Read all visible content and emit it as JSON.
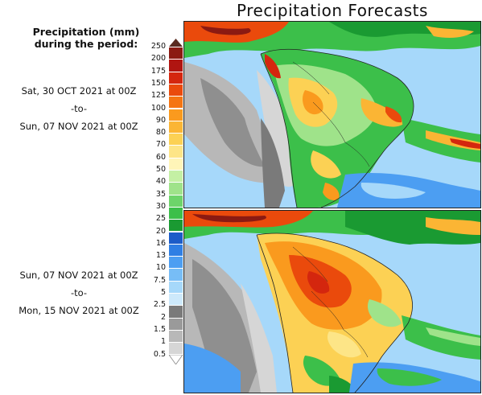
{
  "title": "Precipitation Forecasts",
  "legend": {
    "heading_line1": "Precipitation (mm)",
    "heading_line2": "during the period:",
    "ticks": [
      "250",
      "200",
      "175",
      "150",
      "125",
      "100",
      "90",
      "80",
      "70",
      "60",
      "50",
      "40",
      "35",
      "30",
      "25",
      "20",
      "16",
      "13",
      "10",
      "7.5",
      "5",
      "2.5",
      "2",
      "1.5",
      "1",
      "0.5"
    ],
    "colors": [
      "#5a2a20",
      "#8b1a12",
      "#b01511",
      "#d4260e",
      "#ea4a0c",
      "#f57512",
      "#fa9a1e",
      "#fbb534",
      "#fcd154",
      "#fde587",
      "#fff5b8",
      "#c4f0a4",
      "#9fe38a",
      "#6dd46a",
      "#3cbf4a",
      "#1a9a32",
      "#1c5cc8",
      "#2f7fe4",
      "#4c9ef2",
      "#77bdf6",
      "#a6d8fa",
      "#cde9fb",
      "#7a7a7a",
      "#9a9a9a",
      "#b8b8b8",
      "#d6d6d6",
      "#ffffff"
    ]
  },
  "periods": [
    {
      "start": "Sat, 30 OCT 2021 at 00Z",
      "to": "-to-",
      "end": "Sun, 07 NOV 2021 at 00Z"
    },
    {
      "start": "Sun, 07 NOV 2021 at 00Z",
      "to": "-to-",
      "end": "Mon, 15 NOV 2021 at 00Z"
    }
  ]
}
